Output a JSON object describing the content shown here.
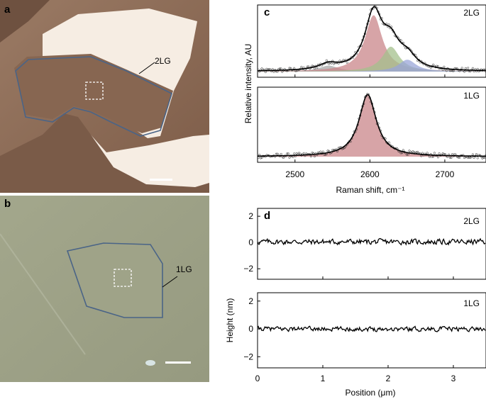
{
  "panels": {
    "a": {
      "letter": "a",
      "label": "2LG"
    },
    "b": {
      "letter": "b",
      "label": "1LG"
    },
    "c": {
      "letter": "c",
      "label_top": "2LG",
      "label_bottom": "1LG"
    },
    "d": {
      "letter": "d",
      "label_top": "2LG",
      "label_bottom": "1LG"
    }
  },
  "colors": {
    "outline": "#4a6487",
    "red_fill": "#c9868a",
    "green_fill": "#a4c08c",
    "blue_fill": "#9aa6d8",
    "gray_fill": "#a8a8a8",
    "flake_a": "#8c6a55",
    "substrate_a": "#f7eee6",
    "bg_b": "#9da186"
  },
  "chart_data": [
    {
      "type": "line",
      "panel": "c-top",
      "xlabel": "Raman shift, cm⁻¹",
      "ylabel": "Relative intensity, AU",
      "xlim": [
        2450,
        2755
      ],
      "ylim": [
        0,
        1.12
      ],
      "xticks": [
        2500,
        2600,
        2700
      ],
      "xtick_labels": [
        "2500",
        "2600",
        "2700"
      ],
      "sample": "2LG",
      "series": [
        {
          "name": "component-2545",
          "center": 2545,
          "width": 16,
          "amplitude": 0.1,
          "color": "gray"
        },
        {
          "name": "component-2605",
          "center": 2605,
          "width": 14,
          "amplitude": 0.95,
          "color": "red"
        },
        {
          "name": "component-2628",
          "center": 2628,
          "width": 14,
          "amplitude": 0.42,
          "color": "green"
        },
        {
          "name": "component-2650",
          "center": 2650,
          "width": 14,
          "amplitude": 0.2,
          "color": "blue"
        }
      ]
    },
    {
      "type": "line",
      "panel": "c-bottom",
      "xlabel": "Raman shift, cm⁻¹",
      "ylabel": "Relative intensity, AU",
      "xlim": [
        2450,
        2755
      ],
      "ylim": [
        0,
        1.12
      ],
      "xticks": [
        2500,
        2600,
        2700
      ],
      "xtick_labels": [
        "2500",
        "2600",
        "2700"
      ],
      "sample": "1LG",
      "series": [
        {
          "name": "component-2597",
          "center": 2597,
          "width": 14,
          "amplitude": 1.0,
          "color": "red"
        }
      ]
    },
    {
      "type": "line",
      "panel": "d-top",
      "xlabel": "Position (μm)",
      "ylabel": "Height (nm)",
      "xlim": [
        0,
        3.5
      ],
      "ylim": [
        -2.8,
        2.6
      ],
      "yticks": [
        2,
        0,
        -2
      ],
      "ytick_labels": [
        "2",
        "0",
        "−2"
      ],
      "xticks": [
        0,
        1,
        2,
        3
      ],
      "xtick_labels": [
        "0",
        "1",
        "2",
        "3"
      ],
      "sample": "2LG",
      "series": [
        {
          "name": "height-profile-2LG",
          "mean": 0.05,
          "spread": 0.35
        }
      ]
    },
    {
      "type": "line",
      "panel": "d-bottom",
      "xlabel": "Position (μm)",
      "ylabel": "Height (nm)",
      "xlim": [
        0,
        3.5
      ],
      "ylim": [
        -2.8,
        2.6
      ],
      "yticks": [
        2,
        0,
        -2
      ],
      "ytick_labels": [
        "2",
        "0",
        "−2"
      ],
      "xticks": [
        0,
        1,
        2,
        3
      ],
      "xtick_labels": [
        "0",
        "1",
        "2",
        "3"
      ],
      "sample": "1LG",
      "series": [
        {
          "name": "height-profile-1LG",
          "mean": 0.0,
          "spread": 0.28
        }
      ]
    }
  ]
}
